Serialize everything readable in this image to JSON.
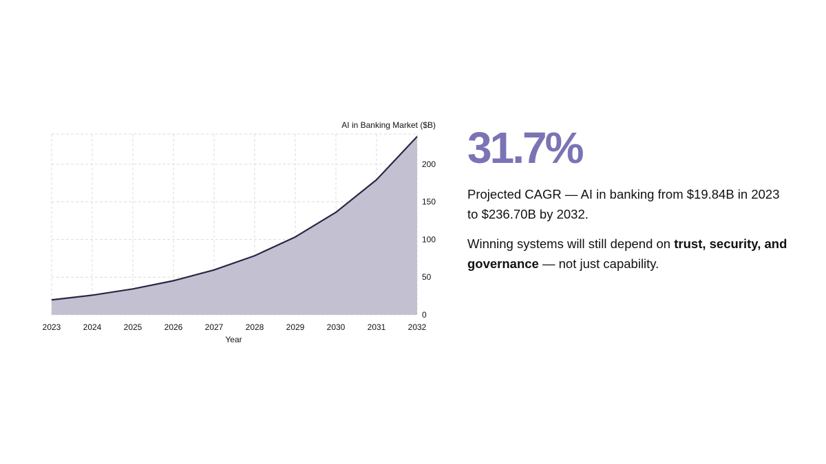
{
  "chart_data": {
    "type": "area",
    "x": [
      2023,
      2024,
      2025,
      2026,
      2027,
      2028,
      2029,
      2030,
      2031,
      2032
    ],
    "series": [
      {
        "values": [
          19.84,
          26.1,
          34.4,
          45.3,
          59.6,
          78.5,
          103.4,
          136.1,
          179.3,
          236.7
        ]
      }
    ],
    "xlabel": "Year",
    "ylabel": "AI in Banking Market ($B)",
    "xlim": [
      2023,
      2032
    ],
    "ylim": [
      0,
      240
    ],
    "yticks": [
      0,
      50,
      100,
      150,
      200
    ],
    "y_axis_side": "right",
    "grid": true,
    "line_color": "#2b2545",
    "fill_color": "#c3c1d1",
    "grid_color": "#dcdcdc"
  },
  "stat": {
    "value": "31.7%",
    "line1": "Projected CAGR — AI in banking from $19.84B in 2023 to $236.70B by 2032.",
    "line2_pre": "Winning systems will still depend on ",
    "line2_bold": "trust, security, and governance",
    "line2_post": " — not just capability.",
    "accent_color": "#7a74b5"
  }
}
